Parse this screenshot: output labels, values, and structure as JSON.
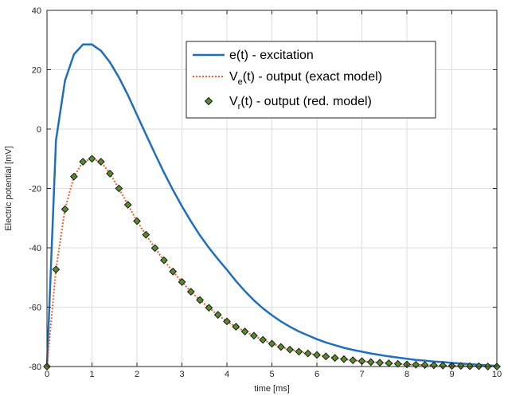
{
  "chart_data": {
    "type": "line",
    "xlabel": "time [ms]",
    "ylabel": "Electric potential [mV]",
    "xlim": [
      0,
      10
    ],
    "ylim": [
      -80,
      40
    ],
    "x_ticks": [
      0,
      1,
      2,
      3,
      4,
      5,
      6,
      7,
      8,
      9,
      10
    ],
    "y_ticks": [
      -80,
      -60,
      -40,
      -20,
      0,
      20,
      40
    ],
    "grid": true,
    "legend_position": "top-right",
    "series": [
      {
        "name_main": "e(t) - excitation",
        "name_prefix": "",
        "name_sub": "",
        "name_suffix": "",
        "style": "solid-line",
        "color": "#1f6fbf",
        "x": [
          0,
          0.2,
          0.4,
          0.6,
          0.8,
          1.0,
          1.2,
          1.4,
          1.6,
          1.8,
          2.0,
          2.2,
          2.4,
          2.6,
          2.8,
          3.0,
          3.2,
          3.4,
          3.6,
          3.8,
          4.0,
          4.2,
          4.4,
          4.6,
          4.8,
          5.0,
          5.2,
          5.4,
          5.6,
          5.8,
          6.0,
          6.2,
          6.4,
          6.6,
          6.8,
          7.0,
          7.2,
          7.4,
          7.6,
          7.8,
          8.0,
          8.2,
          8.4,
          8.6,
          8.8,
          9.0,
          9.2,
          9.4,
          9.6,
          9.8,
          10.0
        ],
        "y": [
          -80,
          -3.8,
          16.3,
          25.2,
          28.5,
          28.5,
          26.4,
          22.5,
          17.4,
          11.4,
          4.8,
          -1.8,
          -8.3,
          -14.6,
          -20.5,
          -26.0,
          -31.1,
          -35.8,
          -40.0,
          -43.8,
          -47.4,
          -51.2,
          -54.6,
          -57.7,
          -60.4,
          -62.7,
          -64.8,
          -66.6,
          -68.2,
          -69.5,
          -70.8,
          -71.9,
          -72.8,
          -73.7,
          -74.4,
          -75.0,
          -75.6,
          -76.1,
          -76.6,
          -77.0,
          -77.4,
          -77.8,
          -78.0,
          -78.3,
          -78.5,
          -78.8,
          -79.0,
          -79.2,
          -79.4,
          -79.6,
          -79.8
        ]
      },
      {
        "name_main": "",
        "name_prefix": "V",
        "name_sub": "e",
        "name_suffix": "(t) - output (exact model)",
        "style": "dotted-line",
        "color": "#e8602c",
        "x": [
          0,
          0.2,
          0.4,
          0.6,
          0.8,
          1.0,
          1.2,
          1.4,
          1.6,
          1.8,
          2.0,
          2.2,
          2.4,
          2.6,
          2.8,
          3.0,
          3.2,
          3.4,
          3.6,
          3.8,
          4.0,
          4.2,
          4.4,
          4.6,
          4.8,
          5.0,
          5.2,
          5.4,
          5.6,
          5.8,
          6.0,
          6.2,
          6.4,
          6.6,
          6.8,
          7.0,
          7.2,
          7.4,
          7.6,
          7.8,
          8.0,
          8.2,
          8.4,
          8.6,
          8.8,
          9.0,
          9.2,
          9.4,
          9.6,
          9.8,
          10.0
        ],
        "y": [
          -80,
          -47.3,
          -27,
          -16,
          -11,
          -10,
          -11,
          -15,
          -20,
          -25.5,
          -31,
          -35.6,
          -40.1,
          -44.2,
          -48,
          -51.5,
          -54.8,
          -57.6,
          -60.2,
          -62.6,
          -64.8,
          -66.6,
          -68.2,
          -69.6,
          -71,
          -72.3,
          -73.4,
          -74.3,
          -75,
          -75.6,
          -76.1,
          -76.6,
          -77.1,
          -77.5,
          -77.9,
          -78.2,
          -78.5,
          -78.7,
          -78.9,
          -79.1,
          -79.3,
          -79.4,
          -79.5,
          -79.6,
          -79.7,
          -79.8,
          -79.8,
          -79.9,
          -79.9,
          -80,
          -80
        ]
      },
      {
        "name_main": "",
        "name_prefix": "V",
        "name_sub": "r",
        "name_suffix": "(t) - output (red. model)",
        "style": "diamond-markers",
        "color": "#5a8a2e",
        "x": [
          0,
          0.2,
          0.4,
          0.6,
          0.8,
          1.0,
          1.2,
          1.4,
          1.6,
          1.8,
          2.0,
          2.2,
          2.4,
          2.6,
          2.8,
          3.0,
          3.2,
          3.4,
          3.6,
          3.8,
          4.0,
          4.2,
          4.4,
          4.6,
          4.8,
          5.0,
          5.2,
          5.4,
          5.6,
          5.8,
          6.0,
          6.2,
          6.4,
          6.6,
          6.8,
          7.0,
          7.2,
          7.4,
          7.6,
          7.8,
          8.0,
          8.2,
          8.4,
          8.6,
          8.8,
          9.0,
          9.2,
          9.4,
          9.6,
          9.8,
          10.0
        ],
        "y": [
          -80,
          -47.3,
          -27,
          -16,
          -11,
          -10,
          -11,
          -15,
          -20,
          -25.5,
          -31,
          -35.6,
          -40.1,
          -44.2,
          -48,
          -51.5,
          -54.8,
          -57.6,
          -60.2,
          -62.6,
          -64.8,
          -66.6,
          -68.2,
          -69.6,
          -71,
          -72.3,
          -73.4,
          -74.3,
          -75,
          -75.6,
          -76.1,
          -76.6,
          -77.1,
          -77.5,
          -77.9,
          -78.2,
          -78.5,
          -78.7,
          -78.9,
          -79.1,
          -79.3,
          -79.4,
          -79.5,
          -79.6,
          -79.7,
          -79.8,
          -79.8,
          -79.9,
          -79.9,
          -80,
          -80
        ]
      }
    ]
  }
}
